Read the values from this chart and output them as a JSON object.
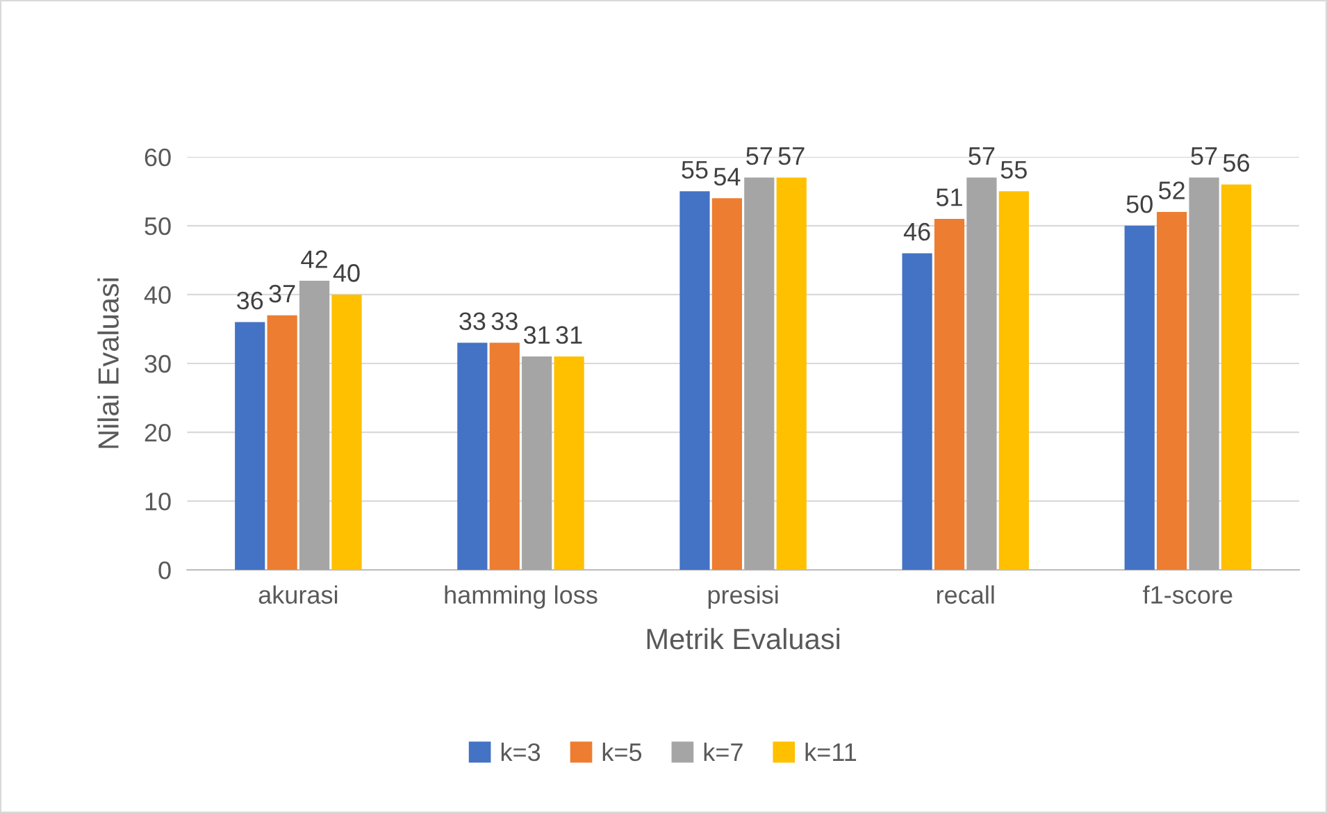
{
  "chart_data": {
    "type": "bar",
    "xlabel": "Metrik Evaluasi",
    "ylabel": "Nilai Evaluasi",
    "categories": [
      "akurasi",
      "hamming loss",
      "presisi",
      "recall",
      "f1-score"
    ],
    "series": [
      {
        "name": "k=3",
        "color": "#4472c4",
        "values": [
          36,
          33,
          55,
          46,
          50
        ]
      },
      {
        "name": "k=5",
        "color": "#ed7d31",
        "values": [
          37,
          33,
          54,
          51,
          52
        ]
      },
      {
        "name": "k=7",
        "color": "#a5a5a5",
        "values": [
          42,
          31,
          57,
          57,
          57
        ]
      },
      {
        "name": "k=11",
        "color": "#ffc000",
        "values": [
          40,
          31,
          57,
          55,
          56
        ]
      }
    ],
    "ylim": [
      0,
      60
    ],
    "yticks": [
      0,
      10,
      20,
      30,
      40,
      50,
      60
    ],
    "grid": "y",
    "legend": "bottom",
    "data_labels": true
  }
}
